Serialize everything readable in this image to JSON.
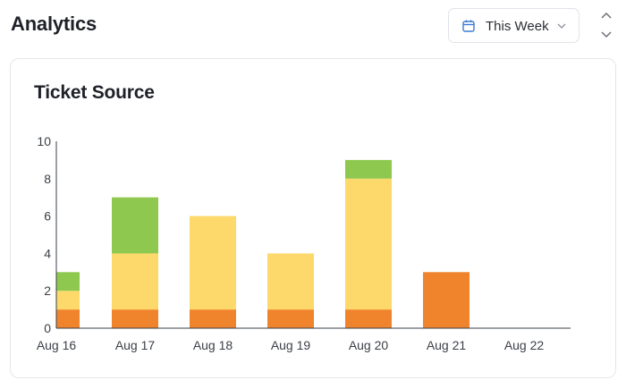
{
  "header": {
    "title": "Analytics",
    "range_select": {
      "value": "This Week",
      "icon": "calendar-icon",
      "chevron_icon": "chevron-down-icon"
    },
    "scroll_icons": [
      "chevron-up-icon",
      "chevron-down-icon"
    ]
  },
  "card": {
    "title": "Ticket Source"
  },
  "colors": {
    "orange": "#f0842c",
    "yellow": "#fcd96a",
    "green": "#8fc84e",
    "accent_blue": "#3a7bd5"
  },
  "chart_data": {
    "type": "bar",
    "stacked": true,
    "categories": [
      "Aug 16",
      "Aug 17",
      "Aug 18",
      "Aug 19",
      "Aug 20",
      "Aug 21",
      "Aug 22"
    ],
    "series": [
      {
        "color": "#f0842c",
        "values": [
          1,
          1,
          1,
          1,
          1,
          3,
          0
        ]
      },
      {
        "color": "#fcd96a",
        "values": [
          1,
          3,
          5,
          3,
          7,
          0,
          0
        ]
      },
      {
        "color": "#8fc84e",
        "values": [
          1,
          3,
          0,
          0,
          1,
          0,
          0
        ]
      }
    ],
    "yticks": [
      "0",
      "2",
      "4",
      "6",
      "8",
      "10"
    ],
    "ylim": [
      0,
      10
    ],
    "grid": false,
    "legend": "none"
  }
}
